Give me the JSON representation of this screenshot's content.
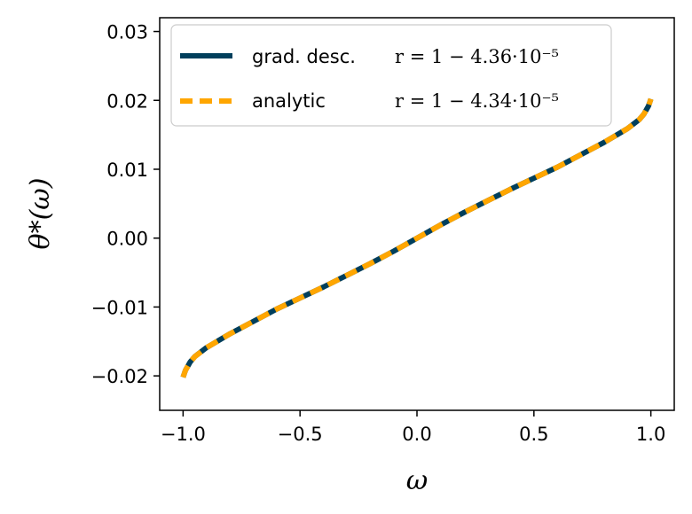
{
  "chart_data": {
    "type": "line",
    "title": "",
    "xlabel": "ω",
    "ylabel": "θ*(ω)",
    "xlim": [
      -1.1,
      1.1
    ],
    "ylim": [
      -0.025,
      0.032
    ],
    "xticks": [
      -1.0,
      -0.5,
      0.0,
      0.5,
      1.0
    ],
    "xtick_labels": [
      "−1.0",
      "−0.5",
      "0.0",
      "0.5",
      "1.0"
    ],
    "yticks": [
      -0.02,
      -0.01,
      0.0,
      0.01,
      0.02,
      0.03
    ],
    "ytick_labels": [
      "−0.02",
      "−0.01",
      "0.00",
      "0.01",
      "0.02",
      "0.03"
    ],
    "grid": false,
    "legend_position": "top-left",
    "series": [
      {
        "name": "grad. desc.",
        "annotation": "r = 1 − 4.36·10⁻⁵",
        "color": "#003f5c",
        "style": "solid",
        "x": [
          -1.0,
          -0.99,
          -0.97,
          -0.95,
          -0.9,
          -0.8,
          -0.7,
          -0.6,
          -0.5,
          -0.4,
          -0.3,
          -0.2,
          -0.1,
          0.0,
          0.1,
          0.2,
          0.3,
          0.4,
          0.5,
          0.6,
          0.7,
          0.8,
          0.9,
          0.95,
          0.97,
          0.99,
          1.0
        ],
        "y": [
          -0.0202,
          -0.0192,
          -0.018,
          -0.0172,
          -0.0159,
          -0.0139,
          -0.0121,
          -0.0103,
          -0.0087,
          -0.0071,
          -0.0054,
          -0.0037,
          -0.0019,
          0.0,
          0.0019,
          0.0037,
          0.0054,
          0.0071,
          0.0087,
          0.0103,
          0.0121,
          0.0139,
          0.0159,
          0.0172,
          0.018,
          0.0192,
          0.0202
        ]
      },
      {
        "name": "analytic",
        "annotation": "r = 1 − 4.34·10⁻⁵",
        "color": "#ffa600",
        "style": "dashed",
        "x": [
          -1.0,
          -0.99,
          -0.97,
          -0.95,
          -0.9,
          -0.8,
          -0.7,
          -0.6,
          -0.5,
          -0.4,
          -0.3,
          -0.2,
          -0.1,
          0.0,
          0.1,
          0.2,
          0.3,
          0.4,
          0.5,
          0.6,
          0.7,
          0.8,
          0.9,
          0.95,
          0.97,
          0.99,
          1.0
        ],
        "y": [
          -0.0202,
          -0.0192,
          -0.018,
          -0.0172,
          -0.0159,
          -0.0139,
          -0.0121,
          -0.0103,
          -0.0087,
          -0.0071,
          -0.0054,
          -0.0037,
          -0.0019,
          0.0,
          0.0019,
          0.0037,
          0.0054,
          0.0071,
          0.0087,
          0.0103,
          0.0121,
          0.0139,
          0.0159,
          0.0172,
          0.018,
          0.0192,
          0.0202
        ]
      }
    ]
  }
}
